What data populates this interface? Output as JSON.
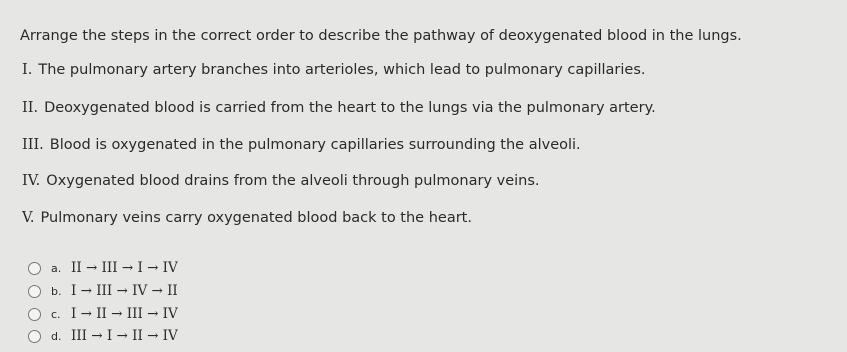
{
  "question": "Arrange the steps in the correct order to describe the pathway of deoxygenated blood in the lungs.",
  "steps": [
    {
      "numeral": "I.",
      "text": "The pulmonary artery branches into arterioles, which lead to pulmonary capillaries."
    },
    {
      "numeral": "II.",
      "text": "Deoxygenated blood is carried from the heart to the lungs via the pulmonary artery."
    },
    {
      "numeral": "III.",
      "text": "Blood is oxygenated in the pulmonary capillaries surrounding the alveoli."
    },
    {
      "numeral": "IV.",
      "text": "Oxygenated blood drains from the alveoli through pulmonary veins."
    },
    {
      "numeral": "V.",
      "text": "Pulmonary veins carry oxygenated blood back to the heart."
    }
  ],
  "options": [
    {
      "letter": "a.",
      "sequence": "II → III → I → IV"
    },
    {
      "letter": "b.",
      "sequence": "I → III → IV → II"
    },
    {
      "letter": "c.",
      "sequence": "I → II → III → IV"
    },
    {
      "letter": "d.",
      "sequence": "III → I → II → IV"
    }
  ]
}
